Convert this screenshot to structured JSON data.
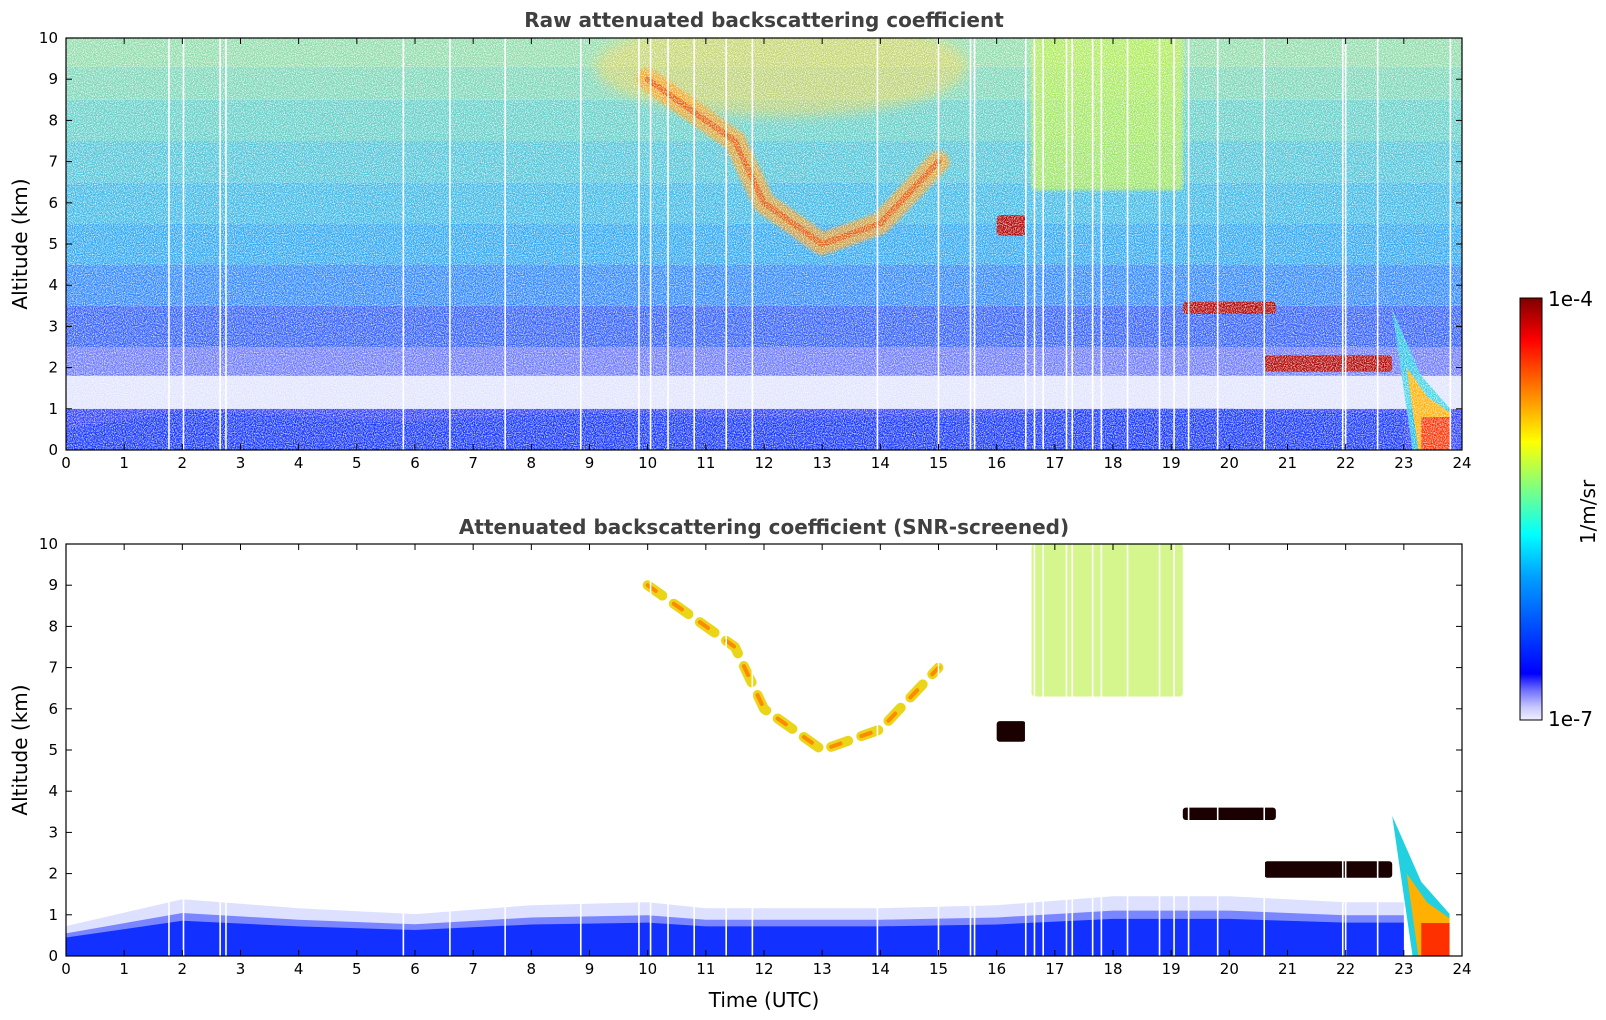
{
  "chart_data": [
    {
      "type": "heatmap",
      "title": "Raw attenuated backscattering coefficient",
      "xlabel": "",
      "ylabel": "Altitude (km)",
      "xlim": [
        0,
        24
      ],
      "ylim": [
        0,
        10
      ],
      "xticks": [
        "0",
        "1",
        "2",
        "3",
        "4",
        "5",
        "6",
        "7",
        "8",
        "9",
        "10",
        "11",
        "12",
        "13",
        "14",
        "15",
        "16",
        "17",
        "18",
        "19",
        "20",
        "21",
        "22",
        "23",
        "24"
      ],
      "yticks": [
        "0",
        "1",
        "2",
        "3",
        "4",
        "5",
        "6",
        "7",
        "8",
        "9",
        "10"
      ],
      "grid": false,
      "boundary_layer_top_km": [
        [
          0,
          0.5
        ],
        [
          2,
          0.95
        ],
        [
          4,
          0.8
        ],
        [
          6,
          0.7
        ],
        [
          8,
          0.85
        ],
        [
          10,
          0.9
        ],
        [
          11,
          0.8
        ],
        [
          12,
          0.8
        ],
        [
          14,
          0.8
        ],
        [
          16,
          0.85
        ],
        [
          18,
          1.0
        ],
        [
          20,
          1.0
        ],
        [
          22,
          0.9
        ],
        [
          23,
          0.9
        ]
      ],
      "cloud_features": [
        {
          "t0": 9.6,
          "t1": 15.6,
          "alt0": 4.5,
          "alt1": 10.0,
          "intensity": "high",
          "desc_t_km": [
            [
              10,
              9.0
            ],
            [
              11,
              8.0
            ],
            [
              11.5,
              7.5
            ],
            [
              12,
              6.0
            ],
            [
              13,
              5.0
            ],
            [
              14,
              5.5
            ],
            [
              15,
              7.0
            ]
          ]
        },
        {
          "t0": 16.0,
          "t1": 16.5,
          "alt0": 5.2,
          "alt1": 5.7,
          "intensity": "max"
        },
        {
          "t0": 16.6,
          "t1": 19.2,
          "alt0": 6.3,
          "alt1": 10.0,
          "intensity": "medium"
        },
        {
          "t0": 19.2,
          "t1": 20.8,
          "alt0": 3.3,
          "alt1": 3.6,
          "intensity": "max"
        },
        {
          "t0": 20.6,
          "t1": 22.8,
          "alt0": 1.9,
          "alt1": 2.3,
          "intensity": "max"
        },
        {
          "t0": 22.8,
          "t1": 23.8,
          "alt0": 0.0,
          "alt1": 3.5,
          "intensity": "precipitation"
        }
      ],
      "data_gaps_utc": [
        1.77,
        2.02,
        2.65,
        2.75,
        5.8,
        6.6,
        7.55,
        8.85,
        9.85,
        10.05,
        10.35,
        10.8,
        11.35,
        11.8,
        13.95,
        15.0,
        15.55,
        15.62,
        16.5,
        16.65,
        16.8,
        17.2,
        17.3,
        17.65,
        17.8,
        18.25,
        18.8,
        19.05,
        19.3,
        19.8,
        20.6,
        21.95,
        22.0,
        22.55,
        23.8
      ]
    },
    {
      "type": "heatmap",
      "title": "Attenuated backscattering coefficient (SNR-screened)",
      "xlabel": "Time (UTC)",
      "ylabel": "Altitude (km)",
      "xlim": [
        0,
        24
      ],
      "ylim": [
        0,
        10
      ],
      "xticks": [
        "0",
        "1",
        "2",
        "3",
        "4",
        "5",
        "6",
        "7",
        "8",
        "9",
        "10",
        "11",
        "12",
        "13",
        "14",
        "15",
        "16",
        "17",
        "18",
        "19",
        "20",
        "21",
        "22",
        "23",
        "24"
      ],
      "yticks": [
        "0",
        "1",
        "2",
        "3",
        "4",
        "5",
        "6",
        "7",
        "8",
        "9",
        "10"
      ],
      "grid": false,
      "screened": true
    }
  ],
  "colorbar": {
    "label": "1/m/sr",
    "max_label": "1e-4",
    "min_label": "1e-7",
    "colormap": "jet",
    "low_colors": [
      "#f0f0ff",
      "#c8c8ff",
      "#9696ff"
    ]
  }
}
